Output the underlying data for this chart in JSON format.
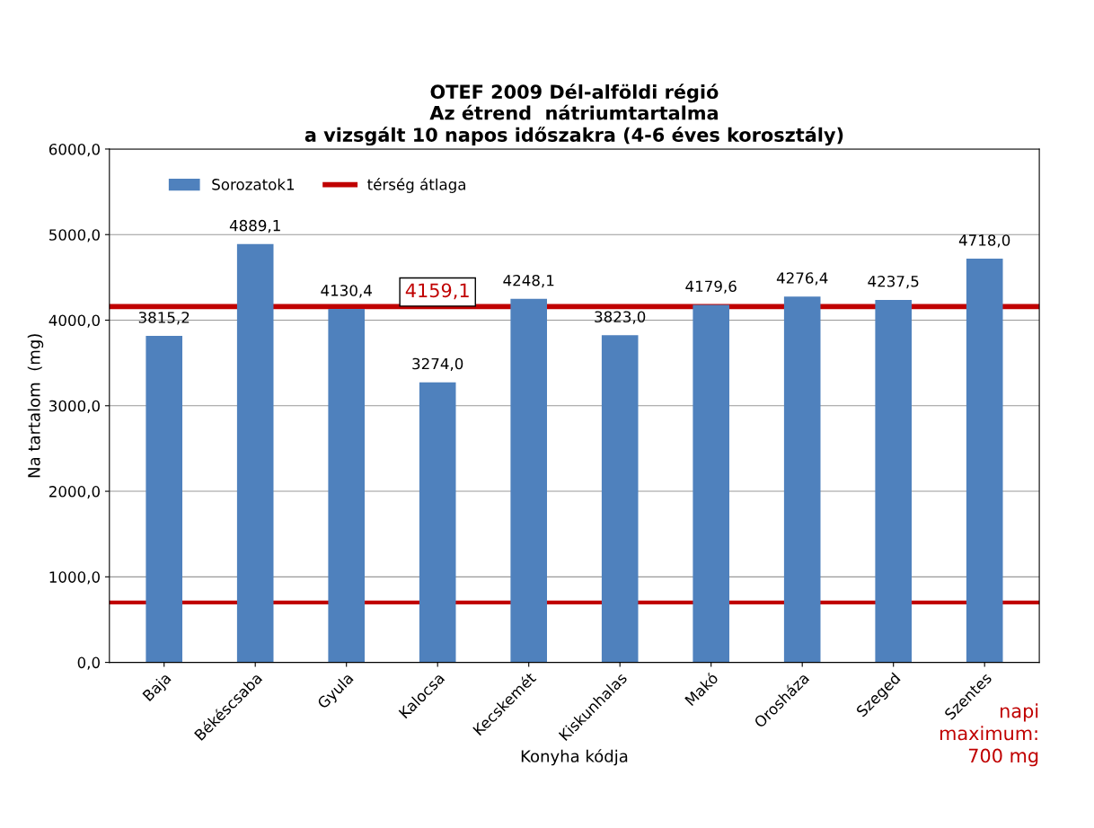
{
  "chart_data": {
    "type": "bar",
    "title": "OTEF 2009 Dél-alföldi régió\nAz étrend  nátriumtartalma\na vizsgált 10 napos időszakra (4-6 éves korosztály)",
    "xlabel": "Konyha kódja",
    "ylabel": "Na tartalom  (mg)",
    "categories": [
      "Baja",
      "Békéscsaba",
      "Gyula",
      "Kalocsa",
      "Kecskemét",
      "Kiskunhalas",
      "Makó",
      "Orosháza",
      "Szeged",
      "Szentes"
    ],
    "series": [
      {
        "name": "Sorozatok1",
        "color": "#4f81bd",
        "values": [
          3815.2,
          4889.1,
          4130.4,
          3274.0,
          4248.1,
          3823.0,
          4179.6,
          4276.4,
          4237.5,
          4718.0
        ],
        "value_labels": [
          "3815,2",
          "4889,1",
          "4130,4",
          "3274,0",
          "4248,1",
          "3823,0",
          "4179,6",
          "4276,4",
          "4237,5",
          "4718,0"
        ]
      }
    ],
    "ylim": [
      0,
      6000
    ],
    "yticks": [
      {
        "value": 0,
        "label": "0,0"
      },
      {
        "value": 1000,
        "label": "1000,0"
      },
      {
        "value": 2000,
        "label": "2000,0"
      },
      {
        "value": 3000,
        "label": "3000,0"
      },
      {
        "value": 4000,
        "label": "4000,0"
      },
      {
        "value": 5000,
        "label": "5000,0"
      },
      {
        "value": 6000,
        "label": "6000,0"
      }
    ],
    "ref_lines": [
      {
        "axis": "y",
        "value": 4159.1,
        "label": "térség átlaga",
        "color": "#c00000"
      },
      {
        "axis": "y",
        "value": 700,
        "label": "napi\nmaximum:\n700 mg",
        "color": "#c00000"
      }
    ],
    "annotations": [
      "4159,1"
    ],
    "grid": "y",
    "legend": "top left"
  }
}
